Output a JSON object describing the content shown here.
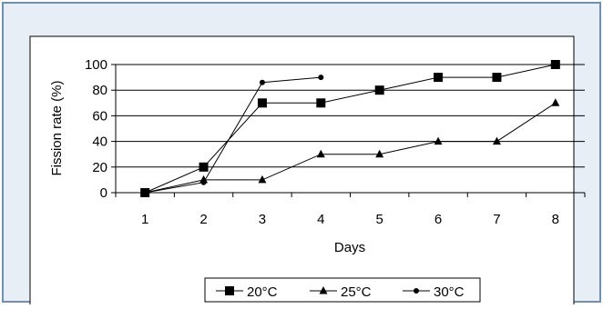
{
  "chart_data": {
    "type": "line",
    "title": "",
    "xlabel": "Days",
    "ylabel": "Fission rate (%)",
    "x": [
      1,
      2,
      3,
      4,
      5,
      6,
      7,
      8
    ],
    "ylim": [
      0,
      100
    ],
    "yticks": [
      0,
      20,
      40,
      60,
      80,
      100
    ],
    "grid": true,
    "legend_position": "bottom",
    "series": [
      {
        "name": "20°C",
        "marker": "square",
        "x": [
          1,
          2,
          3,
          4,
          5,
          6,
          7,
          8
        ],
        "values": [
          0,
          20,
          70,
          70,
          80,
          90,
          90,
          100
        ]
      },
      {
        "name": "25°C",
        "marker": "triangle",
        "x": [
          1,
          2,
          3,
          4,
          5,
          6,
          7,
          8
        ],
        "values": [
          0,
          10,
          10,
          30,
          30,
          40,
          40,
          70
        ]
      },
      {
        "name": "30°C",
        "marker": "circle",
        "x": [
          1,
          2,
          3,
          4
        ],
        "values": [
          0,
          8,
          86,
          90
        ]
      }
    ]
  },
  "colors": {
    "outer_background": "#e8eef6",
    "outer_border": "#6f8fb5",
    "plot_background": "#ffffff",
    "line": "#000000",
    "grid": "#000000"
  }
}
